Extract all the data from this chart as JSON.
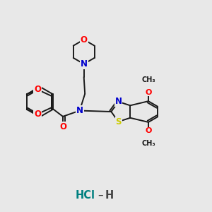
{
  "background_color": "#e8e8e8",
  "bond_color": "#1a1a1a",
  "bond_width": 1.4,
  "atom_colors": {
    "O": "#ff0000",
    "N": "#0000cc",
    "S": "#cccc00",
    "C": "#1a1a1a",
    "H": "#1a1a1a",
    "Cl": "#008080"
  },
  "font_size": 8.5,
  "figsize": [
    3.0,
    3.0
  ],
  "dpi": 100,
  "xlim": [
    0,
    10
  ],
  "ylim": [
    0,
    10
  ]
}
